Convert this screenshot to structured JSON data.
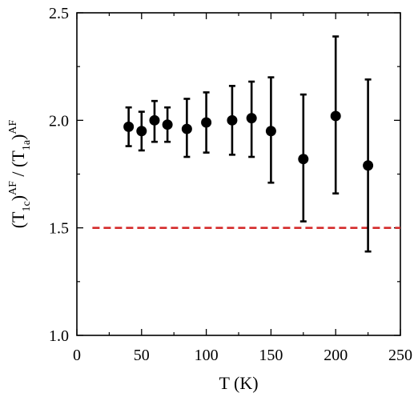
{
  "chart_data": {
    "type": "scatter",
    "xlabel": "T (K)",
    "ylabel": {
      "parts": [
        "(T",
        "1",
        "c",
        ")",
        "AF",
        " / (T",
        "1",
        "a",
        ")",
        "AF"
      ],
      "roles": [
        "base",
        "sub",
        "sub",
        "base",
        "sup",
        "base",
        "sub",
        "sub",
        "base",
        "sup"
      ]
    },
    "xlim": [
      0,
      250
    ],
    "ylim": [
      1.0,
      2.5
    ],
    "xticks": [
      0,
      50,
      100,
      150,
      200,
      250
    ],
    "yticks": [
      1.0,
      1.5,
      2.0,
      2.5
    ],
    "xtick_labels": [
      "0",
      "50",
      "100",
      "150",
      "200",
      "250"
    ],
    "ytick_labels": [
      "1.0",
      "1.5",
      "2.0",
      "2.5"
    ],
    "grid": false,
    "series": [
      {
        "marker": "filled-circle",
        "color": "#000000",
        "points": [
          {
            "x": 40,
            "y": 1.97,
            "ylow": 1.88,
            "yhigh": 2.06
          },
          {
            "x": 50,
            "y": 1.95,
            "ylow": 1.86,
            "yhigh": 2.04
          },
          {
            "x": 60,
            "y": 2.0,
            "ylow": 1.9,
            "yhigh": 2.09
          },
          {
            "x": 70,
            "y": 1.98,
            "ylow": 1.9,
            "yhigh": 2.06
          },
          {
            "x": 85,
            "y": 1.96,
            "ylow": 1.83,
            "yhigh": 2.1
          },
          {
            "x": 100,
            "y": 1.99,
            "ylow": 1.85,
            "yhigh": 2.13
          },
          {
            "x": 120,
            "y": 2.0,
            "ylow": 1.84,
            "yhigh": 2.16
          },
          {
            "x": 135,
            "y": 2.01,
            "ylow": 1.83,
            "yhigh": 2.18
          },
          {
            "x": 150,
            "y": 1.95,
            "ylow": 1.71,
            "yhigh": 2.2
          },
          {
            "x": 175,
            "y": 1.82,
            "ylow": 1.53,
            "yhigh": 2.12
          },
          {
            "x": 200,
            "y": 2.02,
            "ylow": 1.66,
            "yhigh": 2.39
          },
          {
            "x": 225,
            "y": 1.79,
            "ylow": 1.39,
            "yhigh": 2.19
          }
        ]
      }
    ],
    "reference_lines": [
      {
        "y": 1.5,
        "x_from": 12,
        "x_to": 250,
        "style": "dashed",
        "color": "#d42a2a"
      }
    ]
  }
}
